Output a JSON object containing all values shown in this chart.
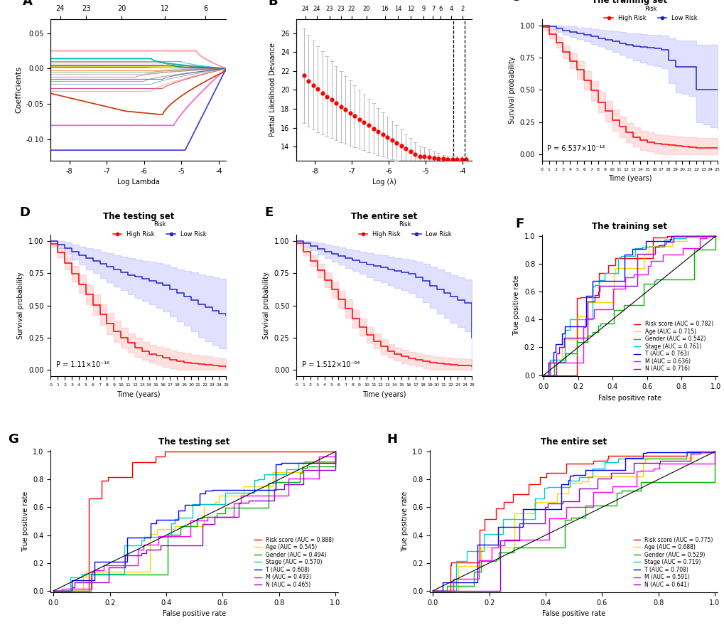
{
  "panel_A": {
    "xlabel": "Log Lambda",
    "ylabel": "Coefficients",
    "xlim": [
      -8.5,
      -3.8
    ],
    "ylim": [
      -0.13,
      0.07
    ],
    "yticks": [
      -0.1,
      -0.05,
      0.0,
      0.05
    ],
    "xticks": [
      -8,
      -7,
      -6,
      -5,
      -4
    ],
    "top_tick_pos": [
      -8.25,
      -7.55,
      -6.6,
      -5.45,
      -4.35
    ],
    "top_tick_labels": [
      "24",
      "23",
      "20",
      "12",
      "6"
    ]
  },
  "panel_B": {
    "xlabel": "Log (λ)",
    "ylabel": "Partial Likelihood Deviance",
    "xlim": [
      -8.5,
      -3.75
    ],
    "ylim": [
      12.5,
      27.5
    ],
    "yticks": [
      14,
      16,
      18,
      20,
      22,
      24,
      26
    ],
    "xticks": [
      -8,
      -7,
      -6,
      -5,
      -4
    ],
    "top_tick_pos": [
      -8.25,
      -7.95,
      -7.6,
      -7.3,
      -7.0,
      -6.6,
      -6.1,
      -5.75,
      -5.4,
      -5.05,
      -4.8,
      -4.6,
      -4.3,
      -4.0
    ],
    "top_tick_labels": [
      "24",
      "24",
      "23",
      "23",
      "22",
      "20",
      "16",
      "14",
      "12",
      "9",
      "7",
      "6",
      "4",
      "2"
    ],
    "vline1": -4.25,
    "vline2": -3.95
  },
  "panel_C": {
    "title": "The training set",
    "p_value": "P = 6.537×10⁻¹²",
    "xlabel": "Time (years)",
    "ylabel": "Survival probability"
  },
  "panel_D": {
    "title": "The testing set",
    "p_value": "P = 1.11×10⁻¹⁶",
    "xlabel": "Time (years)",
    "ylabel": "Survival probability"
  },
  "panel_E": {
    "title": "The entire set",
    "p_value": "P = 1.512×10⁻⁰⁴",
    "xlabel": "Time (years)",
    "ylabel": "Survival probability"
  },
  "panel_F": {
    "title": "The training set",
    "xlabel": "False positive rate",
    "ylabel": "True positive rate",
    "legend": [
      {
        "label": "Risk score (AUC = 0.782)",
        "color": "#FF0000"
      },
      {
        "label": "Age (AUC = 0.715)",
        "color": "#FFD700"
      },
      {
        "label": "Gender (AUC = 0.542)",
        "color": "#00BB00"
      },
      {
        "label": "Stage (AUC = 0.761)",
        "color": "#00CCCC"
      },
      {
        "label": "T (AUC = 0.763)",
        "color": "#0000FF"
      },
      {
        "label": "M (AUC = 0.636)",
        "color": "#FF00FF"
      },
      {
        "label": "N (AUC = 0.716)",
        "color": "#9900CC"
      }
    ]
  },
  "panel_G": {
    "title": "The testing set",
    "xlabel": "False positive rate",
    "ylabel": "True positive rate",
    "legend": [
      {
        "label": "Risk score (AUC = 0.888)",
        "color": "#FF0000"
      },
      {
        "label": "Age (AUC = 0.545)",
        "color": "#FFD700"
      },
      {
        "label": "Gender (AUC = 0.494)",
        "color": "#00BB00"
      },
      {
        "label": "Stage (AUC = 0.570)",
        "color": "#00CCCC"
      },
      {
        "label": "T (AUC = 0.608)",
        "color": "#0000FF"
      },
      {
        "label": "M (AUC = 0.493)",
        "color": "#FF00FF"
      },
      {
        "label": "N (AUC = 0.465)",
        "color": "#9900CC"
      }
    ]
  },
  "panel_H": {
    "title": "The entire set",
    "xlabel": "False positive rate",
    "ylabel": "True positive rate",
    "legend": [
      {
        "label": "Risk score (AUC = 0.775)",
        "color": "#FF0000"
      },
      {
        "label": "Age (AUC = 0.688)",
        "color": "#FFD700"
      },
      {
        "label": "Gender (AUC = 0.529)",
        "color": "#00BB00"
      },
      {
        "label": "Stage (AUC = 0.719)",
        "color": "#00CCCC"
      },
      {
        "label": "T (AUC = 0.708)",
        "color": "#0000FF"
      },
      {
        "label": "M (AUC = 0.591)",
        "color": "#FF00FF"
      },
      {
        "label": "N (AUC = 0.641)",
        "color": "#9900CC"
      }
    ]
  }
}
